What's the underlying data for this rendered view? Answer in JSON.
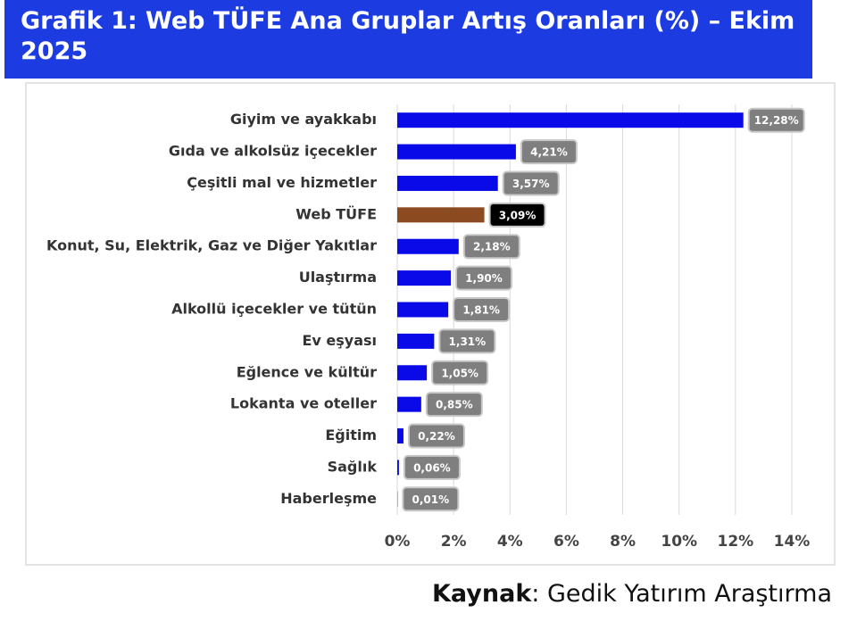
{
  "chart_data": {
    "type": "barh",
    "title": "Grafik 1: Web TÜFE Ana Gruplar Artış Oranları (%) – Ekim 2025",
    "categories": [
      "Giyim ve ayakkabı",
      "Gıda ve alkolsüz içecekler",
      "Çeşitli mal ve hizmetler",
      "Web TÜFE",
      "Konut, Su, Elektrik, Gaz ve Diğer Yakıtlar",
      "Ulaştırma",
      "Alkollü içecekler ve tütün",
      "Ev eşyası",
      "Eğlence ve kültür",
      "Lokanta ve oteller",
      "Eğitim",
      "Sağlık",
      "Haberleşme"
    ],
    "values": [
      12.28,
      4.21,
      3.57,
      3.09,
      2.18,
      1.9,
      1.81,
      1.31,
      1.05,
      0.85,
      0.22,
      0.06,
      0.01
    ],
    "value_labels": [
      "12,28%",
      "4,21%",
      "3,57%",
      "3,09%",
      "2,18%",
      "1,90%",
      "1,81%",
      "1,31%",
      "1,05%",
      "0,85%",
      "0,22%",
      "0,06%",
      "0,01%"
    ],
    "colors": [
      "#0a0ae8",
      "#0a0ae8",
      "#0a0ae8",
      "#8b4a1f",
      "#0a0ae8",
      "#0a0ae8",
      "#0a0ae8",
      "#0a0ae8",
      "#0a0ae8",
      "#0a0ae8",
      "#0a0ae8",
      "#0a0ae8",
      "#0a0ae8"
    ],
    "label_colors": [
      "#7f7f7f",
      "#7f7f7f",
      "#7f7f7f",
      "#000000",
      "#7f7f7f",
      "#7f7f7f",
      "#7f7f7f",
      "#7f7f7f",
      "#7f7f7f",
      "#7f7f7f",
      "#7f7f7f",
      "#7f7f7f",
      "#7f7f7f"
    ],
    "xlim": [
      0,
      14
    ],
    "xticks": [
      {
        "value": 0,
        "label": "0%"
      },
      {
        "value": 2,
        "label": "2%"
      },
      {
        "value": 4,
        "label": "4%"
      },
      {
        "value": 6,
        "label": "6%"
      },
      {
        "value": 8,
        "label": "8%"
      },
      {
        "value": 10,
        "label": "10%"
      },
      {
        "value": 12,
        "label": "12%"
      },
      {
        "value": 14,
        "label": "14%"
      }
    ],
    "grid": true,
    "source_label": "Kaynak",
    "source": ": Gedik Yatırım Araştırma"
  }
}
